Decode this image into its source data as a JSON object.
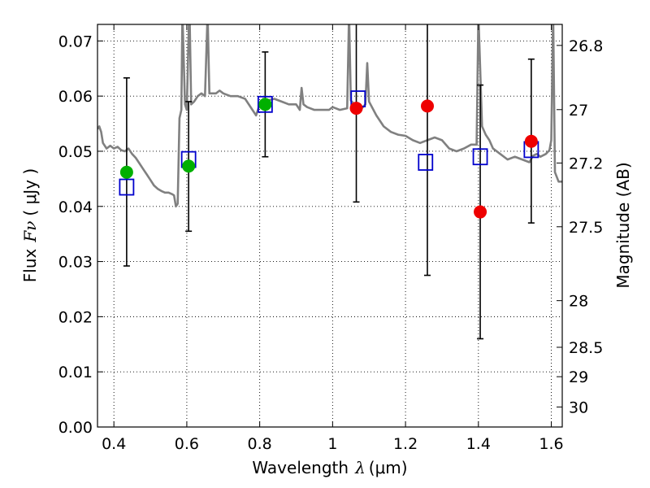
{
  "chart_data": {
    "type": "scatter",
    "title": "",
    "xlabel_text": "Wavelength",
    "xlabel_symbol": "λ",
    "xlabel_unit": "(μm)",
    "ylabel_text": "Flux",
    "ylabel_symbol": "Fν",
    "ylabel_unit": "( μJy )",
    "y2label": "Magnitude (AB)",
    "xlim": [
      0.355,
      1.63
    ],
    "ylim": [
      0.0,
      0.073
    ],
    "grid": true,
    "x_ticks": [
      {
        "value": 0.4,
        "label": "0.4"
      },
      {
        "value": 0.6,
        "label": "0.6"
      },
      {
        "value": 0.8,
        "label": "0.8"
      },
      {
        "value": 1.0,
        "label": "1"
      },
      {
        "value": 1.2,
        "label": "1.2"
      },
      {
        "value": 1.4,
        "label": "1.4"
      },
      {
        "value": 1.6,
        "label": "1.6"
      }
    ],
    "y_ticks": [
      {
        "value": 0.0,
        "label": "0.00"
      },
      {
        "value": 0.01,
        "label": "0.01"
      },
      {
        "value": 0.02,
        "label": "0.02"
      },
      {
        "value": 0.03,
        "label": "0.03"
      },
      {
        "value": 0.04,
        "label": "0.04"
      },
      {
        "value": 0.05,
        "label": "0.05"
      },
      {
        "value": 0.06,
        "label": "0.06"
      },
      {
        "value": 0.07,
        "label": "0.07"
      }
    ],
    "y2_ticks": [
      {
        "value": 26.8,
        "label": "26.8"
      },
      {
        "value": 27.0,
        "label": "27"
      },
      {
        "value": 27.2,
        "label": "27.2"
      },
      {
        "value": 27.5,
        "label": "27.5"
      },
      {
        "value": 28.0,
        "label": "28"
      },
      {
        "value": 28.5,
        "label": "28.5"
      },
      {
        "value": 29.0,
        "label": "29"
      },
      {
        "value": 30.0,
        "label": "30"
      }
    ],
    "series": [
      {
        "name": "model spectrum",
        "kind": "line",
        "color": "#808080",
        "points": [
          [
            0.355,
            0.054
          ],
          [
            0.36,
            0.0545
          ],
          [
            0.365,
            0.0535
          ],
          [
            0.37,
            0.0515
          ],
          [
            0.38,
            0.0505
          ],
          [
            0.39,
            0.051
          ],
          [
            0.4,
            0.0505
          ],
          [
            0.41,
            0.0508
          ],
          [
            0.42,
            0.0502
          ],
          [
            0.43,
            0.05
          ],
          [
            0.44,
            0.0505
          ],
          [
            0.45,
            0.0495
          ],
          [
            0.46,
            0.0488
          ],
          [
            0.47,
            0.0478
          ],
          [
            0.48,
            0.0468
          ],
          [
            0.49,
            0.0458
          ],
          [
            0.5,
            0.0448
          ],
          [
            0.51,
            0.0438
          ],
          [
            0.52,
            0.0432
          ],
          [
            0.53,
            0.0428
          ],
          [
            0.54,
            0.0425
          ],
          [
            0.55,
            0.0425
          ],
          [
            0.56,
            0.0422
          ],
          [
            0.565,
            0.042
          ],
          [
            0.57,
            0.04
          ],
          [
            0.575,
            0.0405
          ],
          [
            0.58,
            0.056
          ],
          [
            0.585,
            0.0575
          ],
          [
            0.588,
            0.075
          ],
          [
            0.595,
            0.0585
          ],
          [
            0.6,
            0.0575
          ],
          [
            0.607,
            0.077
          ],
          [
            0.612,
            0.0585
          ],
          [
            0.62,
            0.059
          ],
          [
            0.63,
            0.06
          ],
          [
            0.64,
            0.0605
          ],
          [
            0.65,
            0.06
          ],
          [
            0.657,
            0.075
          ],
          [
            0.662,
            0.0605
          ],
          [
            0.67,
            0.0605
          ],
          [
            0.68,
            0.0605
          ],
          [
            0.69,
            0.061
          ],
          [
            0.7,
            0.0605
          ],
          [
            0.72,
            0.06
          ],
          [
            0.74,
            0.06
          ],
          [
            0.76,
            0.0595
          ],
          [
            0.78,
            0.0575
          ],
          [
            0.79,
            0.0565
          ],
          [
            0.8,
            0.0585
          ],
          [
            0.81,
            0.0595
          ],
          [
            0.82,
            0.0592
          ],
          [
            0.84,
            0.0595
          ],
          [
            0.86,
            0.059
          ],
          [
            0.88,
            0.0585
          ],
          [
            0.9,
            0.0585
          ],
          [
            0.91,
            0.0575
          ],
          [
            0.915,
            0.0615
          ],
          [
            0.92,
            0.0585
          ],
          [
            0.93,
            0.058
          ],
          [
            0.95,
            0.0575
          ],
          [
            0.97,
            0.0575
          ],
          [
            0.99,
            0.0575
          ],
          [
            1.0,
            0.058
          ],
          [
            1.02,
            0.0575
          ],
          [
            1.04,
            0.0578
          ],
          [
            1.045,
            0.075
          ],
          [
            1.05,
            0.0592
          ],
          [
            1.06,
            0.0585
          ],
          [
            1.08,
            0.0578
          ],
          [
            1.09,
            0.0585
          ],
          [
            1.095,
            0.066
          ],
          [
            1.1,
            0.059
          ],
          [
            1.12,
            0.0565
          ],
          [
            1.14,
            0.0545
          ],
          [
            1.16,
            0.0535
          ],
          [
            1.18,
            0.053
          ],
          [
            1.2,
            0.0528
          ],
          [
            1.22,
            0.052
          ],
          [
            1.24,
            0.0515
          ],
          [
            1.26,
            0.052
          ],
          [
            1.28,
            0.0525
          ],
          [
            1.3,
            0.052
          ],
          [
            1.32,
            0.0505
          ],
          [
            1.34,
            0.05
          ],
          [
            1.36,
            0.0505
          ],
          [
            1.38,
            0.0512
          ],
          [
            1.395,
            0.0512
          ],
          [
            1.4,
            0.075
          ],
          [
            1.41,
            0.0545
          ],
          [
            1.42,
            0.053
          ],
          [
            1.43,
            0.052
          ],
          [
            1.44,
            0.0505
          ],
          [
            1.46,
            0.0495
          ],
          [
            1.48,
            0.0485
          ],
          [
            1.5,
            0.049
          ],
          [
            1.52,
            0.0485
          ],
          [
            1.54,
            0.048
          ],
          [
            1.55,
            0.0492
          ],
          [
            1.56,
            0.0495
          ],
          [
            1.57,
            0.049
          ],
          [
            1.585,
            0.0495
          ],
          [
            1.595,
            0.0502
          ],
          [
            1.6,
            0.052
          ],
          [
            1.605,
            0.075
          ],
          [
            1.61,
            0.0462
          ],
          [
            1.62,
            0.0445
          ],
          [
            1.63,
            0.0445
          ]
        ]
      },
      {
        "name": "model photometry",
        "kind": "square",
        "color": "#0000cc",
        "points": [
          [
            0.435,
            0.0435
          ],
          [
            0.605,
            0.0485
          ],
          [
            0.815,
            0.0585
          ],
          [
            1.07,
            0.0595
          ],
          [
            1.255,
            0.048
          ],
          [
            1.405,
            0.049
          ],
          [
            1.545,
            0.0503
          ]
        ]
      },
      {
        "name": "detections",
        "kind": "circle",
        "color": "#00b000",
        "points": [
          [
            0.435,
            0.0462
          ],
          [
            0.605,
            0.0473
          ],
          [
            0.815,
            0.0585
          ]
        ]
      },
      {
        "name": "non-detections",
        "kind": "circle",
        "color": "#ee0000",
        "points": [
          [
            1.065,
            0.0578
          ],
          [
            1.26,
            0.0582
          ],
          [
            1.405,
            0.039
          ],
          [
            1.545,
            0.0518
          ]
        ]
      },
      {
        "name": "error bars",
        "kind": "errorbar",
        "color": "#000000",
        "bars": [
          {
            "x": 0.435,
            "low": 0.0292,
            "high": 0.0633
          },
          {
            "x": 0.605,
            "low": 0.0355,
            "high": 0.059
          },
          {
            "x": 0.815,
            "low": 0.049,
            "high": 0.068
          },
          {
            "x": 1.065,
            "low": 0.0408,
            "high": 0.075
          },
          {
            "x": 1.26,
            "low": 0.0275,
            "high": 0.075
          },
          {
            "x": 1.405,
            "low": 0.016,
            "high": 0.062
          },
          {
            "x": 1.545,
            "low": 0.037,
            "high": 0.0667
          }
        ]
      }
    ]
  }
}
